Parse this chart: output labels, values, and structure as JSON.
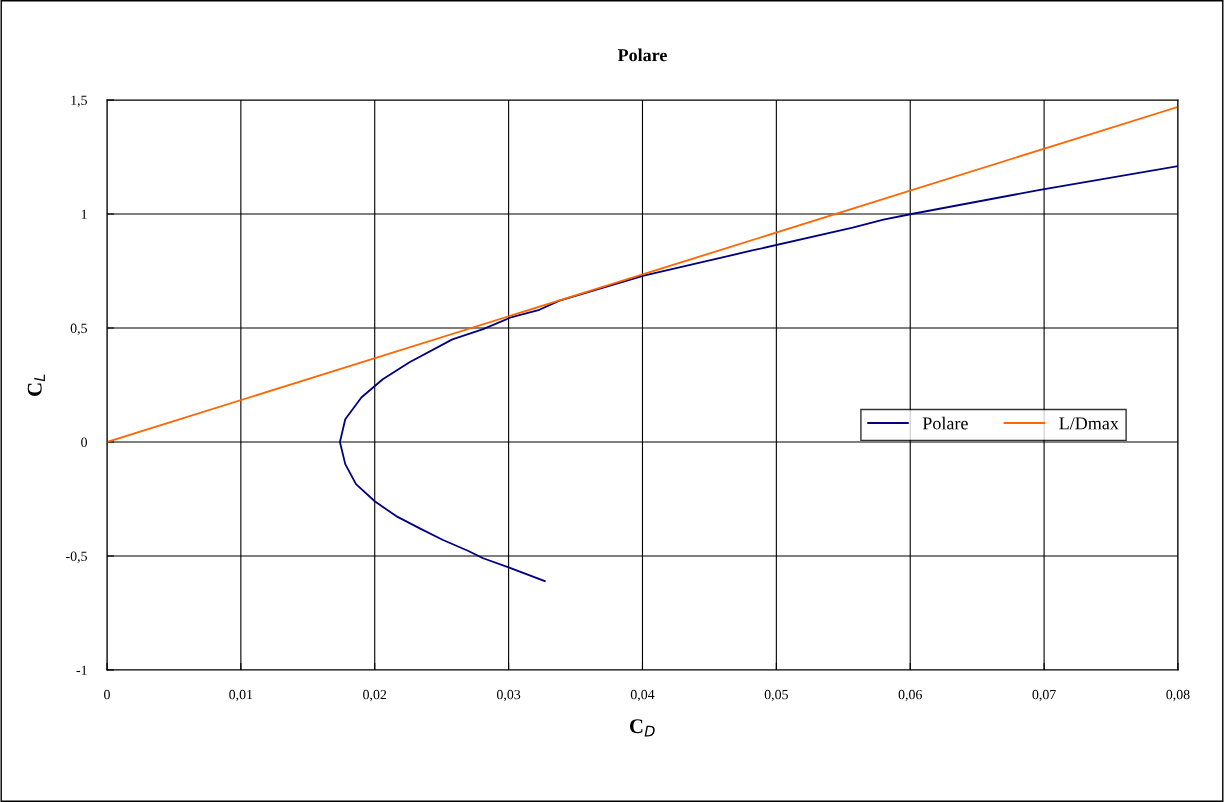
{
  "chart_data": {
    "type": "line",
    "title": "Polare",
    "xlabel": "C$_{D}$",
    "ylabel": "C$_{L}$",
    "xlim": [
      0,
      0.08
    ],
    "ylim": [
      -1,
      1.5
    ],
    "xticks": [
      0,
      {
        "value": 0.01,
        "label": "0,01"
      },
      {
        "value": 0.02,
        "label": "0,02"
      },
      {
        "value": 0.03,
        "label": "0,03"
      },
      {
        "value": 0.04,
        "label": "0,04"
      },
      {
        "value": 0.05,
        "label": "0,05"
      },
      {
        "value": 0.06,
        "label": "0,06"
      },
      {
        "value": 0.07,
        "label": "0,07"
      },
      {
        "value": 0.08,
        "label": "0,08"
      }
    ],
    "yticks": [
      -1,
      {
        "value": -0.5,
        "label": "-0,5"
      },
      0,
      {
        "value": 0.5,
        "label": "0,5"
      },
      1,
      {
        "value": 1.5,
        "label": "1,5"
      }
    ],
    "grid": true,
    "legend": "right",
    "marker": "none",
    "line_style": "solid",
    "series": [
      {
        "name": "Polare",
        "color": "#000080",
        "x": [
          0.0327,
          0.03,
          0.0281,
          0.027,
          0.0251,
          0.0234,
          0.0216,
          0.02,
          0.0186,
          0.0178,
          0.0174,
          0.0178,
          0.019,
          0.0206,
          0.0226,
          0.0258,
          0.0281,
          0.0301,
          0.0323,
          0.0338,
          0.0401,
          0.0482,
          0.0557,
          0.058,
          0.0601,
          0.0697,
          0.08
        ],
        "values": [
          -0.61,
          -0.55,
          -0.51,
          -0.478,
          -0.43,
          -0.38,
          -0.325,
          -0.26,
          -0.185,
          -0.097,
          0,
          0.1,
          0.195,
          0.275,
          0.35,
          0.45,
          0.495,
          0.545,
          0.58,
          0.62,
          0.73,
          0.84,
          0.94,
          0.975,
          1.0,
          1.106,
          1.21
        ]
      },
      {
        "name": "L/Dmax",
        "color": "#ff6600",
        "x": [
          0,
          0.08
        ],
        "values": [
          0,
          1.47
        ]
      }
    ]
  }
}
